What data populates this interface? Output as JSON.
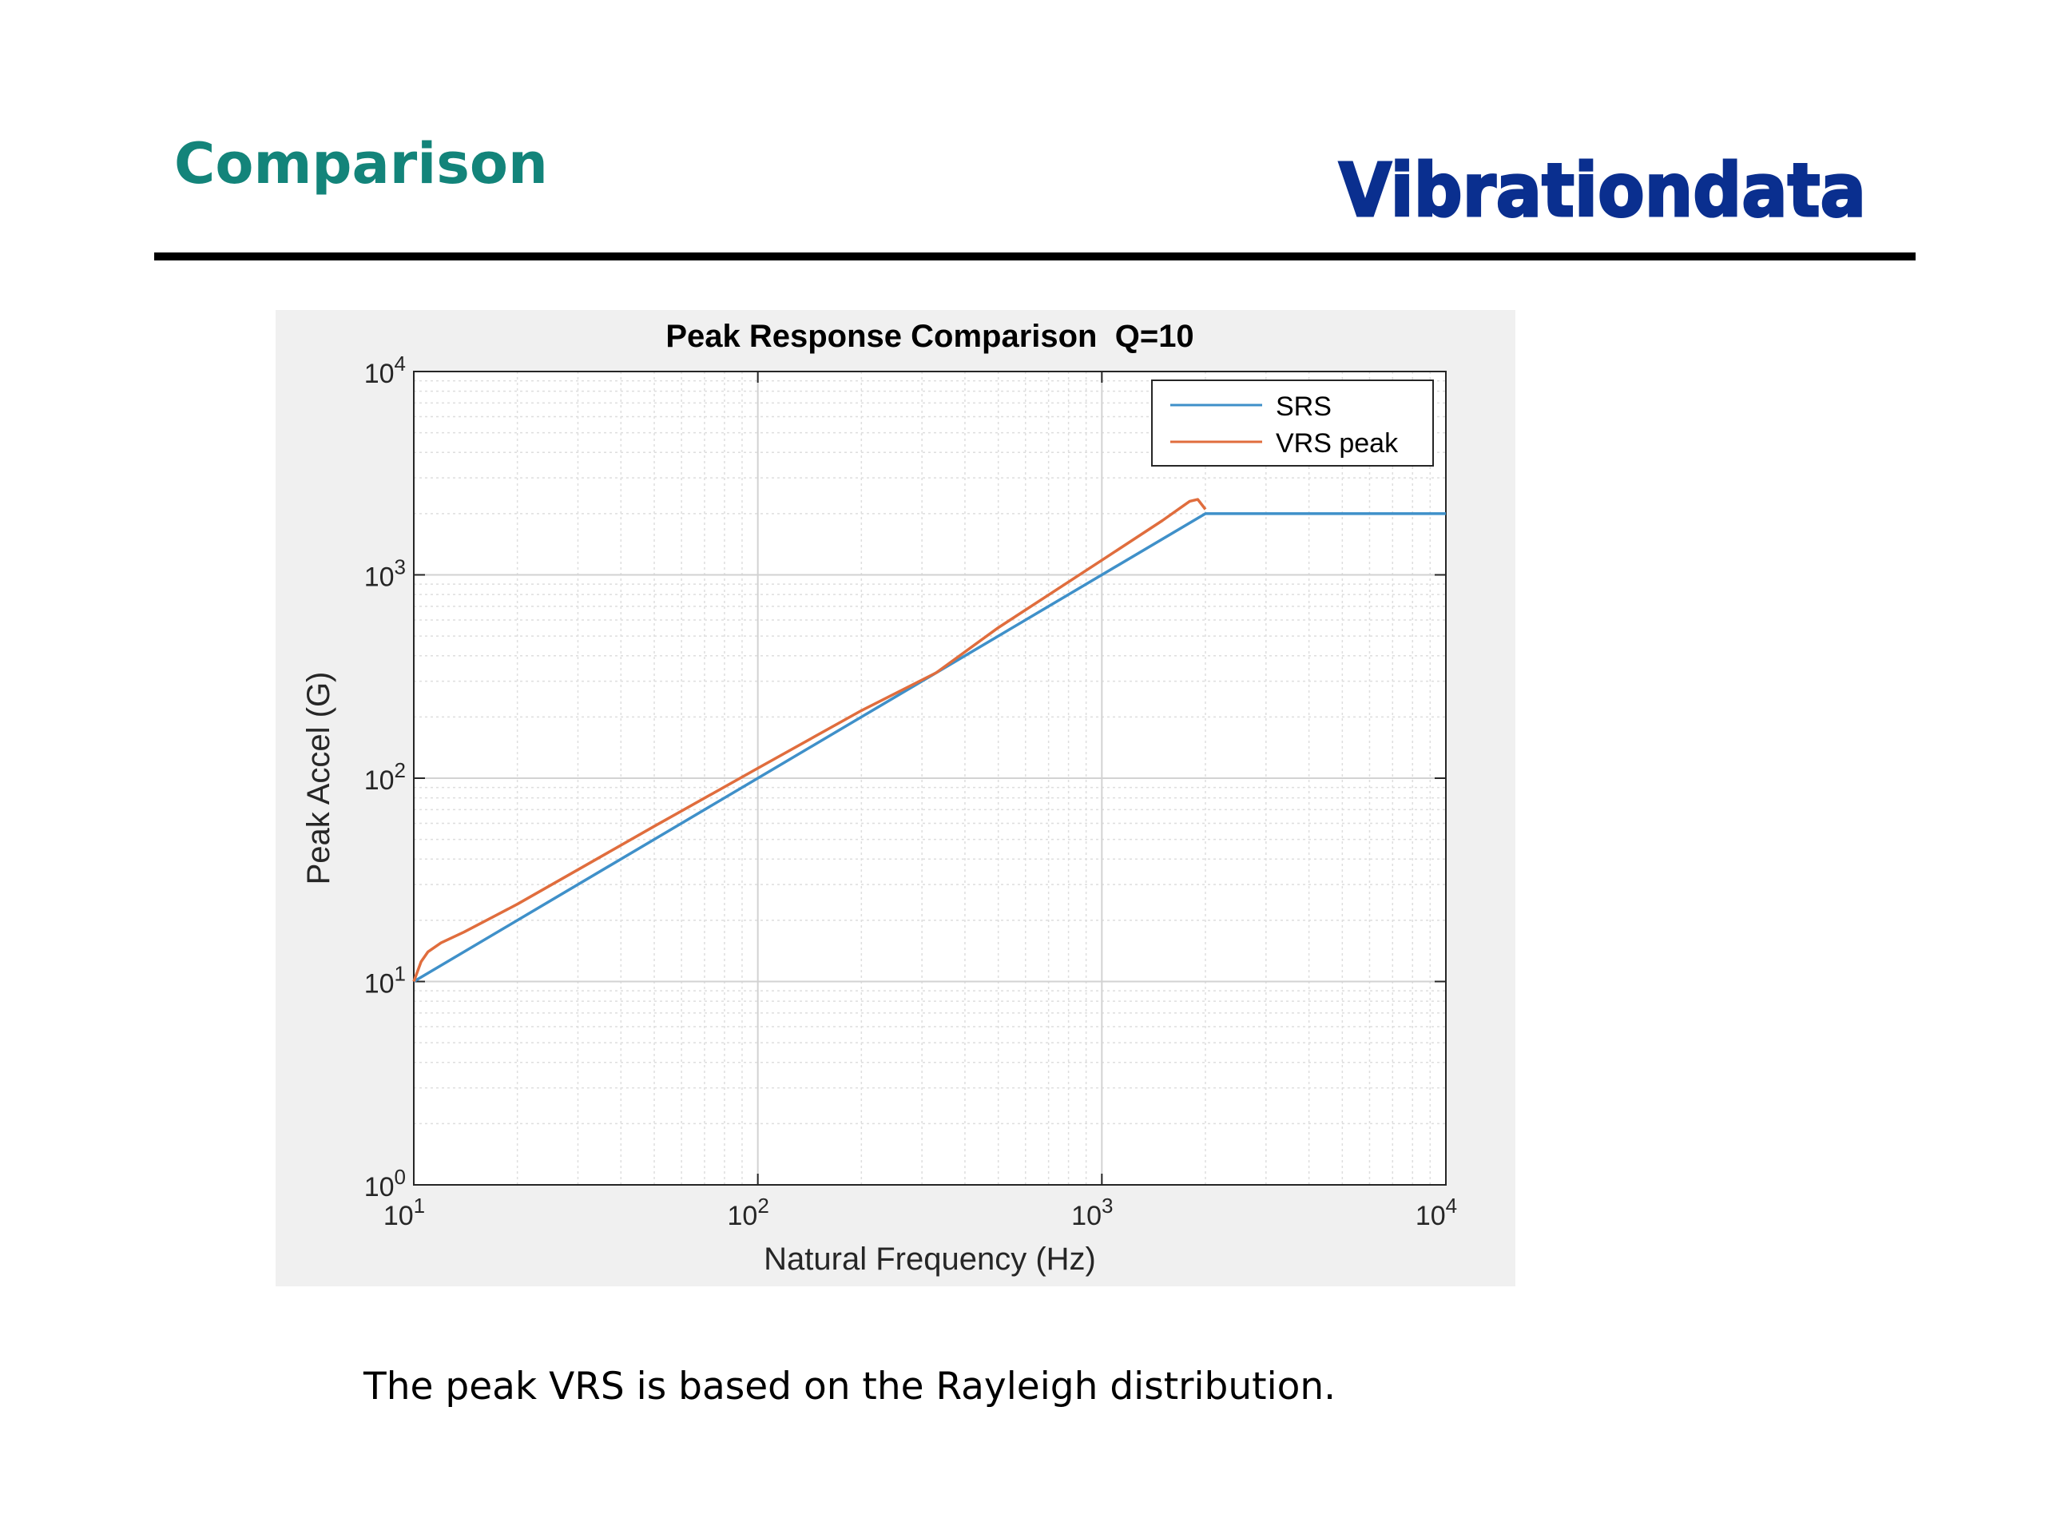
{
  "slide": {
    "title": "Comparison",
    "brand": "Vibrationdata",
    "caption": "The peak VRS is based on the Rayleigh distribution.",
    "colors": {
      "title": "#13847a",
      "brand": "#0a2f8f",
      "rule": "#000000"
    }
  },
  "chart_data": {
    "type": "line",
    "title": "Peak Response Comparison  Q=10",
    "xlabel": "Natural Frequency (Hz)",
    "ylabel": "Peak Accel (G)",
    "xscale": "log",
    "yscale": "log",
    "xlim": [
      10,
      10000
    ],
    "ylim": [
      1,
      10000
    ],
    "x_ticks": [
      10,
      100,
      1000,
      10000
    ],
    "y_ticks": [
      1,
      10,
      100,
      1000,
      10000
    ],
    "grid": "major and minor",
    "legend": "top-right",
    "series": [
      {
        "name": "SRS",
        "color": "#3f90c9",
        "x": [
          10,
          20,
          50,
          100,
          200,
          500,
          1000,
          2000,
          5000,
          10000
        ],
        "y": [
          10,
          20,
          50,
          100,
          200,
          500,
          1000,
          2000,
          2000,
          2000
        ]
      },
      {
        "name": "VRS peak",
        "color": "#e06d3d",
        "x": [
          10,
          10.5,
          11,
          12,
          14,
          20,
          50,
          100,
          200,
          330,
          500,
          1000,
          1500,
          1800,
          1900,
          2000
        ],
        "y": [
          10,
          12.5,
          14,
          15.5,
          17.5,
          24,
          58,
          112,
          215,
          330,
          550,
          1180,
          1850,
          2300,
          2350,
          2100
        ]
      }
    ]
  }
}
